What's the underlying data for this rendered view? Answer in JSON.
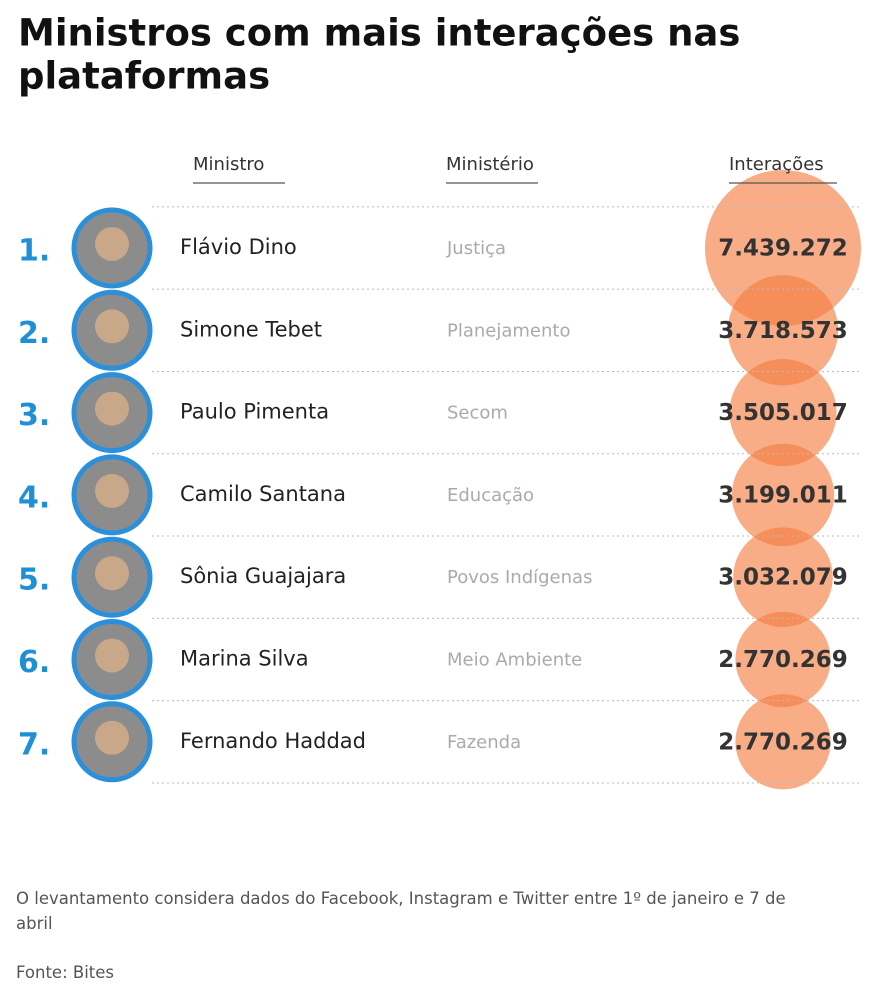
{
  "title": "Ministros com mais interações nas plataformas",
  "columns": [
    "Ministro",
    "Ministério",
    "Interações"
  ],
  "rows": [
    {
      "rank": "1.",
      "name": "Flávio Dino",
      "ministry": "Justiça",
      "interactions": 7439272,
      "interactions_label": "7.439.272"
    },
    {
      "rank": "2.",
      "name": "Simone Tebet",
      "ministry": "Planejamento",
      "interactions": 3718573,
      "interactions_label": "3.718.573"
    },
    {
      "rank": "3.",
      "name": "Paulo Pimenta",
      "ministry": "Secom",
      "interactions": 3505017,
      "interactions_label": "3.505.017"
    },
    {
      "rank": "4.",
      "name": "Camilo Santana",
      "ministry": "Educação",
      "interactions": 3199011,
      "interactions_label": "3.199.011"
    },
    {
      "rank": "5.",
      "name": "Sônia Guajajara",
      "ministry": "Povos Indígenas",
      "interactions": 3032079,
      "interactions_label": "3.032.079"
    },
    {
      "rank": "6.",
      "name": "Marina Silva",
      "ministry": "Meio Ambiente",
      "interactions": 2770269,
      "interactions_label": "2.770.269"
    },
    {
      "rank": "7.",
      "name": "Fernando Haddad",
      "ministry": "Fazenda",
      "interactions": 2770269,
      "interactions_label": "2.770.269"
    }
  ],
  "note": "O levantamento considera dados do Facebook, Instagram e Twitter entre 1º de janeiro e 7 de abril",
  "source": "Fonte: Bites"
}
